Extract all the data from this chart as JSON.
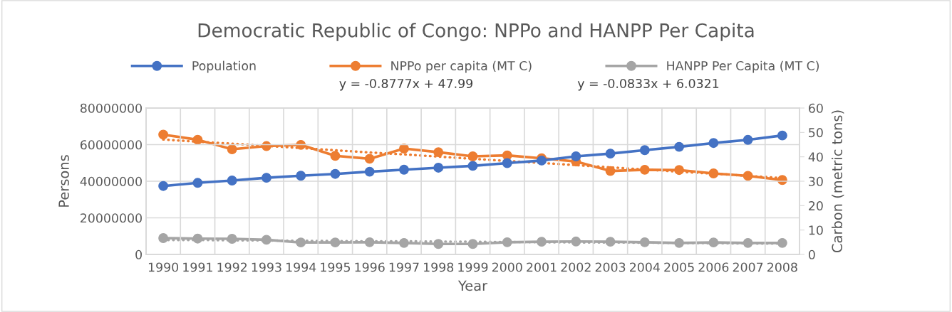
{
  "chart_data": {
    "type": "line",
    "title": "Democratic Republic of Congo: NPPo and HANPP Per Capita",
    "xlabel": "Year",
    "ylabel": "Persons",
    "y2label": "Carbon (metric tons)",
    "categories": [
      "1990",
      "1991",
      "1992",
      "1993",
      "1994",
      "1995",
      "1996",
      "1997",
      "1998",
      "1999",
      "2000",
      "2001",
      "2002",
      "2003",
      "2004",
      "2005",
      "2006",
      "2007",
      "2008"
    ],
    "series": [
      {
        "name": "Population",
        "color": "#4472c4",
        "values": [
          37400000,
          39100000,
          40400000,
          41900000,
          43000000,
          44000000,
          45200000,
          46300000,
          47400000,
          48400000,
          49900000,
          51300000,
          53600000,
          55100000,
          57000000,
          58800000,
          60900000,
          62600000,
          65000000
        ]
      },
      {
        "name": "NPPo per capita (MT C)",
        "color": "#ed7d31",
        "axis": "y2",
        "values": [
          49.1,
          47.0,
          43.1,
          44.4,
          44.9,
          40.4,
          39.2,
          43.4,
          41.9,
          40.2,
          40.6,
          39.4,
          38.1,
          34.2,
          34.7,
          34.6,
          33.2,
          32.2,
          30.5
        ]
      },
      {
        "name": "HANPP Per Capita (MT C)",
        "color": "#a5a5a5",
        "axis": "y2",
        "values": [
          6.7,
          6.5,
          6.4,
          6.0,
          4.9,
          4.9,
          5.0,
          4.7,
          4.3,
          4.3,
          5.0,
          5.2,
          5.3,
          5.2,
          5.0,
          4.7,
          4.9,
          4.7,
          4.7
        ]
      },
      {
        "type": "line",
        "color": "#ed7d31",
        "axis": "y2",
        "line_style": "dotted",
        "marker": "none",
        "values": [
          47.1,
          46.2,
          45.4,
          44.5,
          43.6,
          42.7,
          41.8,
          41.0,
          40.1,
          39.2,
          38.3,
          37.5,
          36.6,
          35.7,
          34.8,
          33.9,
          33.1,
          32.2,
          31.3
        ]
      },
      {
        "type": "line",
        "color": "#a5a5a5",
        "axis": "y2",
        "line_style": "dotted",
        "marker": "none",
        "values": [
          5.9,
          5.9,
          5.8,
          5.7,
          5.6,
          5.5,
          5.4,
          5.4,
          5.3,
          5.2,
          5.1,
          5.0,
          4.9,
          4.9,
          4.8,
          4.7,
          4.6,
          4.5,
          4.4
        ]
      }
    ],
    "annotations": [
      "y = -0.8777x + 47.99",
      "y = -0.0833x + 6.0321"
    ],
    "ylim": [
      0,
      80000000
    ],
    "yticks": [
      0,
      20000000,
      40000000,
      60000000,
      80000000
    ],
    "y2lim": [
      0,
      60
    ],
    "y2ticks": [
      0,
      10,
      20,
      30,
      40,
      50,
      60
    ],
    "grid": true,
    "legend": "top",
    "marker": "circle",
    "line_style": "solid"
  }
}
